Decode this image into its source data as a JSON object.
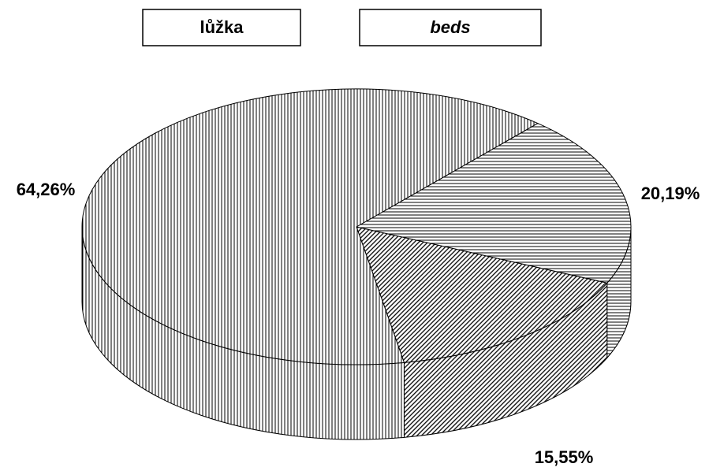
{
  "chart_data": {
    "type": "pie3d",
    "title": "lůžka",
    "subtitle": "beds",
    "values": [
      15.55,
      20.19,
      64.26
    ],
    "value_labels": [
      "15,55%",
      "20,19%",
      "64,26%"
    ],
    "hatches": [
      "diagonal",
      "horizontal",
      "vertical"
    ]
  }
}
